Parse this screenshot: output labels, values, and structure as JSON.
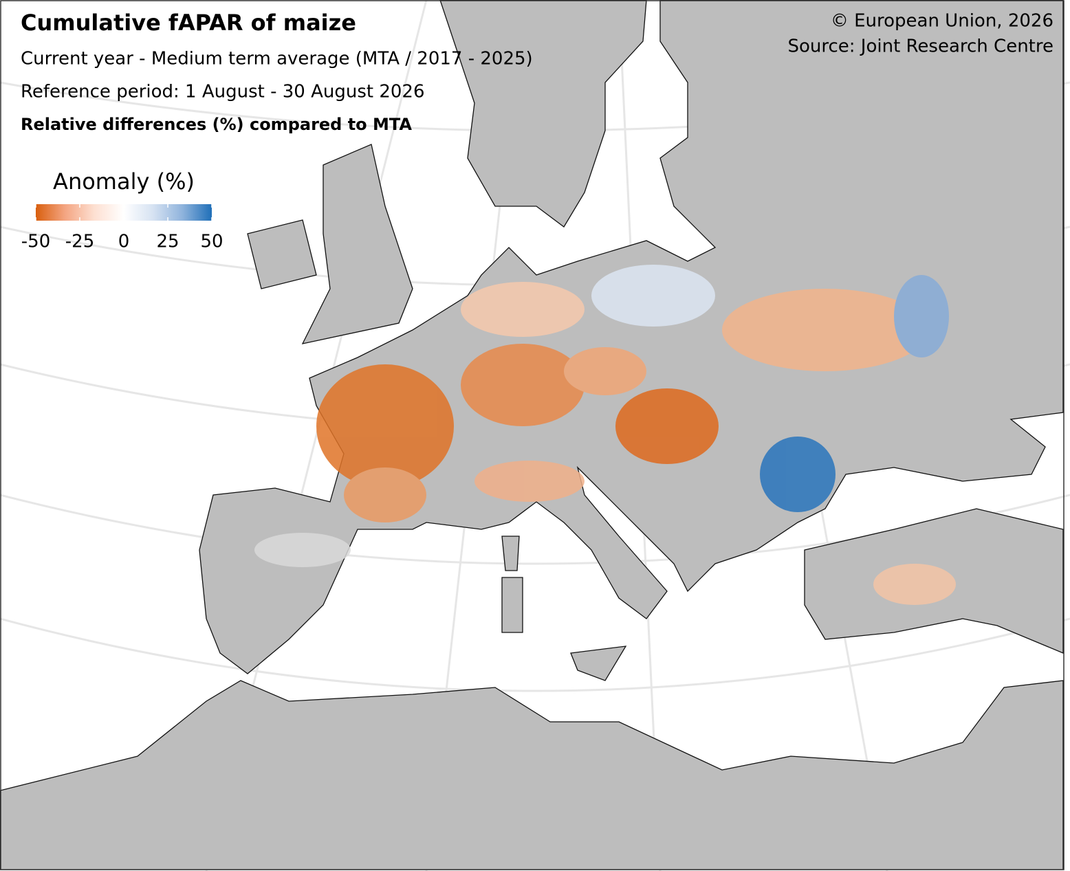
{
  "header": {
    "title": "Cumulative fAPAR of maize",
    "subtitle": "Current year - Medium term average (MTA / 2017 - 2025)",
    "period": "Reference period: 1 August - 30 August 2026",
    "note": "Relative differences (%) compared to MTA"
  },
  "credits": [
    "© European Union, 2026",
    "Source: Joint Research Centre"
  ],
  "legend": {
    "title": "Anomaly (%)",
    "lim": [
      -50,
      50
    ],
    "ticks": [
      -50,
      -25,
      0,
      25,
      50
    ],
    "colors": [
      "#d95f0e",
      "#f4a582",
      "#fde0d2",
      "#ffffff",
      "#d6e2f2",
      "#8fb3dc",
      "#1f6fb8"
    ]
  }
}
